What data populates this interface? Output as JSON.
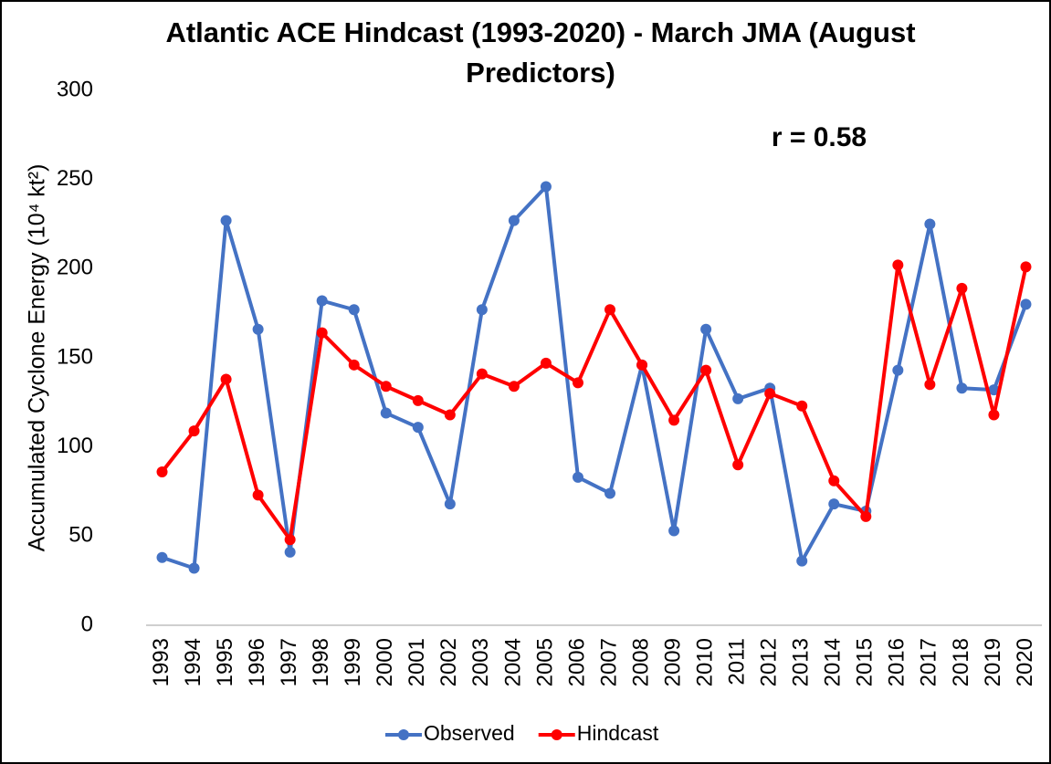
{
  "chart_data": {
    "type": "line",
    "title": "Atlantic ACE Hindcast (1993-2020) - March JMA (August Predictors)",
    "annotation": "r = 0.58",
    "y_label": "Accumulated Cyclone Energy (10⁴ kt²)",
    "categories": [
      "1993",
      "1994",
      "1995",
      "1996",
      "1997",
      "1998",
      "1999",
      "2000",
      "2001",
      "2002",
      "2003",
      "2004",
      "2005",
      "2006",
      "2007",
      "2008",
      "2009",
      "2010",
      "2011",
      "2012",
      "2013",
      "2014",
      "2015",
      "2016",
      "2017",
      "2018",
      "2019",
      "2020"
    ],
    "series": [
      {
        "name": "Observed",
        "color": "#4472c4",
        "values": [
          38,
          32,
          227,
          166,
          41,
          182,
          177,
          119,
          111,
          68,
          177,
          227,
          246,
          83,
          74,
          146,
          53,
          166,
          127,
          133,
          36,
          68,
          64,
          143,
          225,
          133,
          132,
          180
        ]
      },
      {
        "name": "Hindcast",
        "color": "#ff0000",
        "values": [
          86,
          109,
          138,
          73,
          48,
          164,
          146,
          134,
          126,
          118,
          141,
          134,
          147,
          136,
          177,
          146,
          115,
          143,
          90,
          130,
          123,
          81,
          61,
          202,
          135,
          189,
          118,
          201
        ]
      }
    ],
    "ylim": [
      0,
      300
    ],
    "yticks": [
      0,
      50,
      100,
      150,
      200,
      250,
      300
    ],
    "grid": false,
    "legend": "bottom"
  }
}
